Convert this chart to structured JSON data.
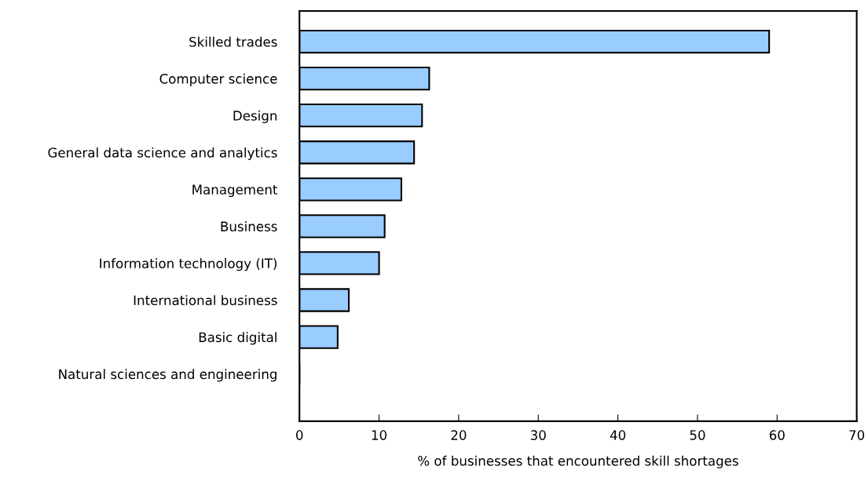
{
  "chart_data": {
    "type": "bar",
    "orientation": "horizontal",
    "xlabel": "% of businesses that encountered skill shortages",
    "categories": [
      "Skilled trades",
      "Computer science",
      "Design",
      "General data science and analytics",
      "Management",
      "Business",
      "Information technology (IT)",
      "International business",
      "Basic digital",
      "Natural sciences and engineering"
    ],
    "values": [
      59.0,
      16.3,
      15.4,
      14.4,
      12.8,
      10.7,
      10.0,
      6.2,
      4.8,
      0
    ],
    "color": "#99ccff",
    "xlim": [
      0,
      70
    ],
    "xticks": [
      0,
      10,
      20,
      30,
      40,
      50,
      60,
      70
    ],
    "grid": false,
    "legend": false
  }
}
